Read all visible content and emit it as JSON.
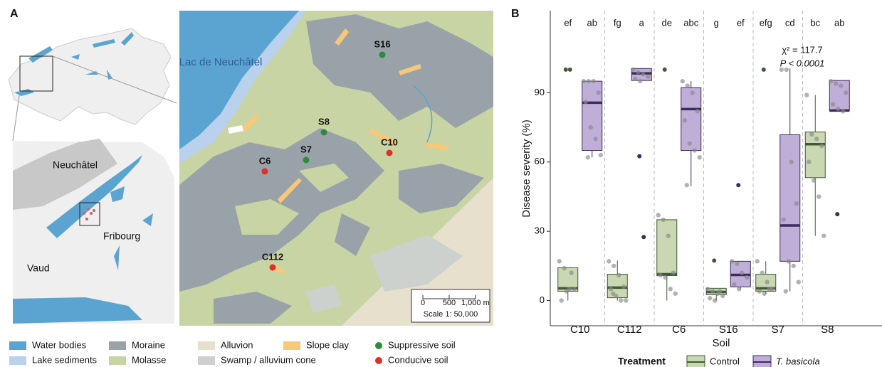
{
  "panel_labels": [
    "A",
    "B"
  ],
  "map": {
    "lake_label": "Lac de Neuchâtel",
    "regions": [
      "Neuchâtel",
      "Fribourg",
      "Vaud"
    ],
    "sites": [
      {
        "label": "S16",
        "color": "#2e8b3e"
      },
      {
        "label": "S8",
        "color": "#2e8b3e"
      },
      {
        "label": "S7",
        "color": "#2e8b3e"
      },
      {
        "label": "C10",
        "color": "#e0302a"
      },
      {
        "label": "C6",
        "color": "#e0302a"
      },
      {
        "label": "C112",
        "color": "#e0302a"
      }
    ],
    "scale_ticks": [
      "0",
      "500",
      "1,000 m"
    ],
    "scale_text": "Scale 1: 50,000",
    "legend": [
      {
        "label": "Water bodies",
        "color": "#5ba4d1",
        "shape": "rect"
      },
      {
        "label": "Lake sediments",
        "color": "#b9d1ec",
        "shape": "rect"
      },
      {
        "label": "Moraine",
        "color": "#99a2a9",
        "shape": "rect"
      },
      {
        "label": "Molasse",
        "color": "#c8d4a3",
        "shape": "rect"
      },
      {
        "label": "Alluvion",
        "color": "#e6e0cd",
        "shape": "rect"
      },
      {
        "label": "Swamp / alluvium cone",
        "color": "#ccd1cd",
        "shape": "rect"
      },
      {
        "label": "Slope clay",
        "color": "#f6c877",
        "shape": "rect"
      },
      {
        "label": "Suppressive soil",
        "color": "#2e8b3e",
        "shape": "circle"
      },
      {
        "label": "Conducive soil",
        "color": "#e0302a",
        "shape": "circle"
      }
    ]
  },
  "chart_data": {
    "type": "box",
    "y_label": "Disease severity (%)",
    "x_label": "Soil",
    "categories": [
      "C10",
      "C112",
      "C6",
      "S16",
      "S7",
      "S8"
    ],
    "ylim": [
      -10,
      124
    ],
    "yticks": [
      0,
      30,
      60,
      90
    ],
    "legend_title": "Treatment",
    "annotations": [
      "χ² = 117.7",
      "P < 0.0001"
    ],
    "series": [
      {
        "name": "Control",
        "color": "#3f5a36",
        "fill": "#c9d8b2",
        "letters": [
          "ef",
          "fg",
          "de",
          "g",
          "efg",
          "bc"
        ],
        "boxes": [
          {
            "min": 0,
            "q1": 4,
            "median": 5.3,
            "q3": 14.2,
            "max": 14.2,
            "outliers": [
              100,
              100
            ],
            "points": [
              17,
              14,
              5,
              5,
              0,
              4,
              12
            ]
          },
          {
            "min": 0,
            "q1": 1.2,
            "median": 5.6,
            "q3": 11.4,
            "max": 17.3,
            "outliers": [],
            "points": [
              17,
              15,
              11,
              6,
              5,
              2,
              0,
              0,
              3
            ]
          },
          {
            "min": 0,
            "q1": 10.8,
            "median": 11.4,
            "q3": 35,
            "max": 35,
            "outliers": [
              100
            ],
            "points": [
              37,
              35,
              28,
              12,
              11,
              10,
              5,
              3
            ]
          },
          {
            "min": 0,
            "q1": 2.5,
            "median": 3.7,
            "q3": 5.3,
            "max": 5.3,
            "outliers": [
              17.3
            ],
            "points": [
              5,
              4,
              3,
              2,
              1,
              0,
              4
            ]
          },
          {
            "min": 3,
            "q1": 4,
            "median": 5.3,
            "q3": 11.4,
            "max": 17,
            "outliers": [
              100
            ],
            "points": [
              17,
              12,
              8,
              5,
              4,
              3,
              5
            ]
          },
          {
            "min": 28,
            "q1": 53.2,
            "median": 67.7,
            "q3": 73,
            "max": 89,
            "outliers": [],
            "points": [
              89,
              72,
              70,
              67,
              60,
              52,
              45,
              28
            ]
          }
        ]
      },
      {
        "name": "T. basicola",
        "color": "#3c2c5c",
        "fill": "#bfaed8",
        "letters": [
          "ab",
          "a",
          "abc",
          "ef",
          "cd",
          "ab"
        ],
        "boxes": [
          {
            "min": 62,
            "q1": 65,
            "median": 85.7,
            "q3": 95,
            "max": 95,
            "outliers": [],
            "points": [
              95,
              95,
              95,
              90,
              86,
              75,
              70,
              63,
              62
            ]
          },
          {
            "min": 95.3,
            "q1": 95.3,
            "median": 98.4,
            "q3": 100.5,
            "max": 100.5,
            "outliers": [
              62.5,
              27.5
            ],
            "points": [
              100,
              99,
              98,
              97,
              96,
              95
            ]
          },
          {
            "min": 49.5,
            "q1": 65,
            "median": 82.9,
            "q3": 92.2,
            "max": 95,
            "outliers": [],
            "points": [
              95,
              93,
              90,
              82,
              78,
              68,
              65,
              62,
              50
            ]
          },
          {
            "min": 5,
            "q1": 5.9,
            "median": 11.1,
            "q3": 17,
            "max": 17,
            "outliers": [
              50
            ],
            "points": [
              17,
              16,
              12,
              10,
              7,
              5
            ]
          },
          {
            "min": 4,
            "q1": 17,
            "median": 32.5,
            "q3": 71.8,
            "max": 100.5,
            "outliers": [],
            "points": [
              100,
              100,
              60,
              42,
              35,
              17,
              15,
              8,
              4
            ]
          },
          {
            "min": 82.3,
            "q1": 82.3,
            "median": 82.3,
            "q3": 95.3,
            "max": 95.3,
            "outliers": [
              37.4
            ],
            "points": [
              95,
              94,
              93,
              90,
              85,
              83,
              82
            ]
          }
        ]
      }
    ]
  }
}
